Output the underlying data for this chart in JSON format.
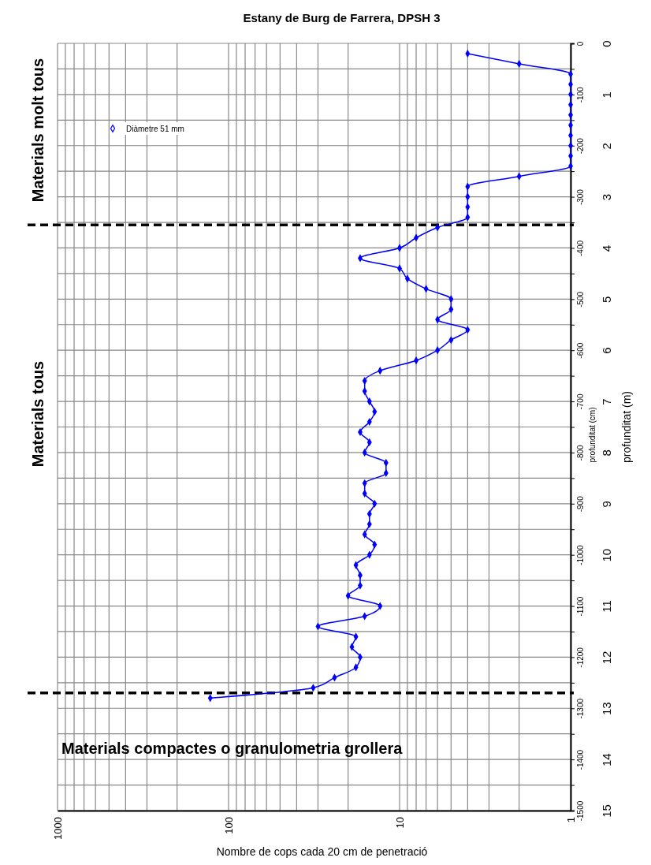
{
  "chart_data": {
    "type": "line",
    "title": "Estany de Burg de Farrera, DPSH 3",
    "xlabel": "Nombre de cops cada 20 cm de penetració",
    "ylabel": "profunditat (cm)",
    "y2label": "profunditat (m)",
    "log": "x",
    "grid": true,
    "legend": "top left",
    "marker": "diamond",
    "line_style": "solid",
    "xlim": [
      1000,
      1
    ],
    "xticks": [
      1000,
      {
        "value": 900,
        "label": null
      },
      {
        "value": 800,
        "label": null
      },
      {
        "value": 700,
        "label": null
      },
      {
        "value": 600,
        "label": null
      },
      {
        "value": 500,
        "label": null
      },
      {
        "value": 400,
        "label": null
      },
      {
        "value": 300,
        "label": null
      },
      {
        "value": 200,
        "label": null
      },
      100,
      {
        "value": 90,
        "label": null
      },
      {
        "value": 80,
        "label": null
      },
      {
        "value": 70,
        "label": null
      },
      {
        "value": 60,
        "label": null
      },
      {
        "value": 50,
        "label": null
      },
      {
        "value": 40,
        "label": null
      },
      {
        "value": 30,
        "label": null
      },
      {
        "value": 20,
        "label": null
      },
      10,
      {
        "value": 9,
        "label": null
      },
      {
        "value": 8,
        "label": null
      },
      {
        "value": 7,
        "label": null
      },
      {
        "value": 6,
        "label": null
      },
      {
        "value": 5,
        "label": null
      },
      {
        "value": 4,
        "label": null
      },
      {
        "value": 3,
        "label": null
      },
      {
        "value": 2,
        "label": null
      },
      1
    ],
    "ylim": [
      -1500,
      0
    ],
    "yticks": [
      0,
      {
        "value": -50,
        "label": null
      },
      -100,
      {
        "value": -150,
        "label": null
      },
      -200,
      {
        "value": -250,
        "label": null
      },
      -300,
      {
        "value": -350,
        "label": null
      },
      -400,
      {
        "value": -450,
        "label": null
      },
      -500,
      {
        "value": -550,
        "label": null
      },
      -600,
      {
        "value": -650,
        "label": null
      },
      -700,
      {
        "value": -750,
        "label": null
      },
      -800,
      {
        "value": -850,
        "label": null
      },
      -900,
      {
        "value": -950,
        "label": null
      },
      -1000,
      {
        "value": -1050,
        "label": null
      },
      -1100,
      {
        "value": -1150,
        "label": null
      },
      -1200,
      {
        "value": -1250,
        "label": null
      },
      -1300,
      {
        "value": -1350,
        "label": null
      },
      -1400,
      {
        "value": -1450,
        "label": null
      },
      -1500
    ],
    "y2lim": [
      15,
      0
    ],
    "y2ticks": [
      0,
      1,
      2,
      3,
      4,
      5,
      6,
      7,
      8,
      9,
      10,
      11,
      12,
      13,
      14,
      15
    ],
    "ref_lines": [
      {
        "axis": "y",
        "value": -355,
        "color": "#000000",
        "line_style": "dashed"
      },
      {
        "axis": "y",
        "value": -1270,
        "color": "#000000",
        "line_style": "dashed"
      }
    ],
    "annotations": [
      "Materials molt tous",
      "Materials tous",
      "Materials compactes o granulometria grollera"
    ],
    "series": [
      {
        "name": "Diàmetre 51 mm",
        "color": "#0000ff",
        "x": [
          4,
          2,
          1,
          1,
          1,
          1,
          1,
          1,
          1,
          1,
          1,
          1,
          2,
          4,
          4,
          4,
          4,
          6,
          8,
          10,
          17,
          10,
          9,
          7,
          5,
          5,
          6,
          4,
          5,
          6,
          8,
          13,
          16,
          16,
          15,
          14,
          15,
          17,
          15,
          16,
          12,
          12,
          16,
          16,
          14,
          15,
          15,
          16,
          14,
          15,
          18,
          17,
          17,
          20,
          13,
          16,
          30,
          18,
          19,
          17,
          18,
          24,
          32,
          128
        ],
        "values": [
          -20,
          -40,
          -60,
          -80,
          -100,
          -120,
          -140,
          -160,
          -180,
          -200,
          -220,
          -240,
          -260,
          -280,
          -300,
          -320,
          -340,
          -360,
          -380,
          -400,
          -420,
          -440,
          -460,
          -480,
          -500,
          -520,
          -540,
          -560,
          -580,
          -600,
          -620,
          -640,
          -660,
          -680,
          -700,
          -720,
          -740,
          -760,
          -780,
          -800,
          -820,
          -840,
          -860,
          -880,
          -900,
          -920,
          -940,
          -960,
          -980,
          -1000,
          -1020,
          -1040,
          -1060,
          -1080,
          -1100,
          -1120,
          -1140,
          -1160,
          -1180,
          -1200,
          -1220,
          -1240,
          -1260,
          -1280
        ]
      }
    ]
  }
}
